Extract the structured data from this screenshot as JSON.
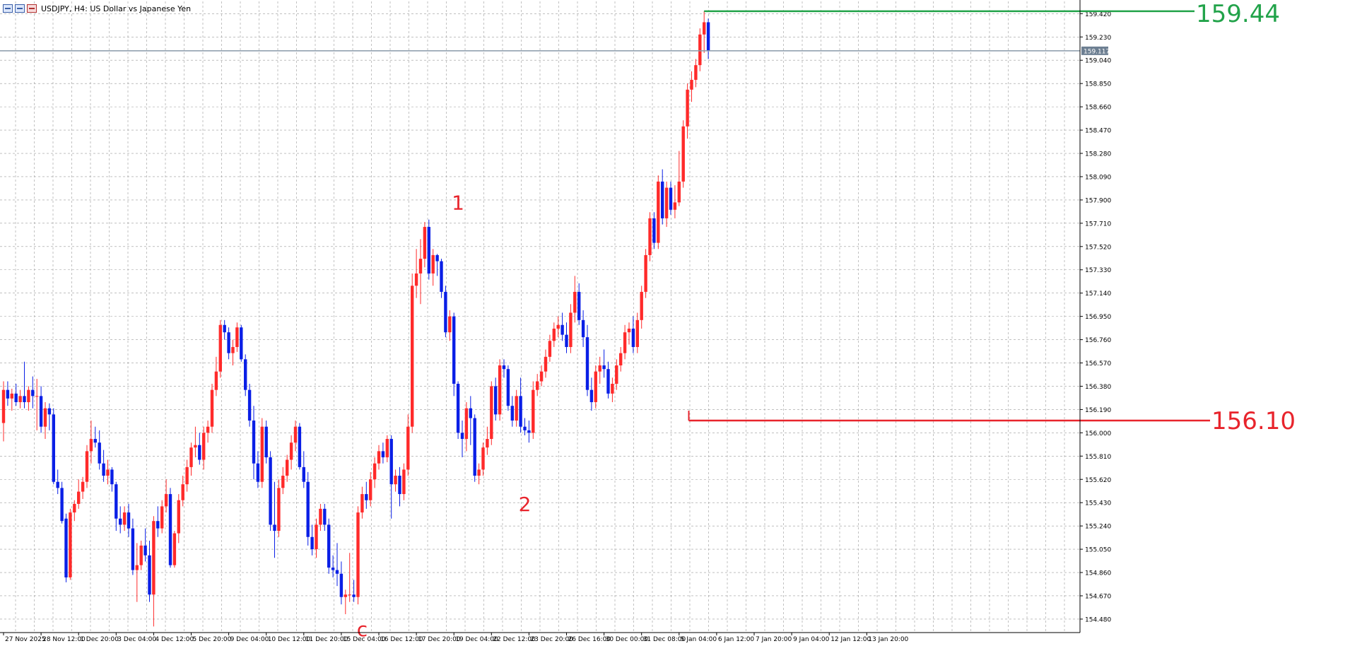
{
  "window": {
    "title": "USDJPY, H4:  US Dollar vs Japanese Yen",
    "icon_names": [
      "chart-window-icon",
      "maximize-window-icon",
      "close-window-icon"
    ]
  },
  "colors": {
    "bull": "#ff2a2a",
    "bear": "#0a1fe6",
    "grid": "#9a9a9a",
    "resistance": "#22a34a",
    "support": "#e8242c",
    "wave_label": "#e8242c",
    "current_price_line": "#8a9aaa",
    "current_price_badge": "#6d7f92"
  },
  "chart_data": {
    "type": "candlestick",
    "symbol": "USDJPY",
    "timeframe": "H4",
    "ylim": [
      154.37,
      159.52
    ],
    "y_ticks": [
      159.42,
      159.23,
      159.04,
      158.85,
      158.66,
      158.47,
      158.28,
      158.09,
      157.9,
      157.71,
      157.52,
      157.33,
      157.14,
      156.95,
      156.76,
      156.57,
      156.38,
      156.19,
      156.0,
      155.81,
      155.62,
      155.43,
      155.24,
      155.05,
      154.86,
      154.67,
      154.48
    ],
    "y_tick_labels": [
      "159.420",
      "159.230",
      "159.040",
      "158.850",
      "158.660",
      "158.470",
      "158.280",
      "158.090",
      "157.900",
      "157.710",
      "157.520",
      "157.330",
      "157.140",
      "156.950",
      "156.760",
      "156.570",
      "156.380",
      "156.190",
      "156.000",
      "155.810",
      "155.620",
      "155.430",
      "155.240",
      "155.050",
      "154.860",
      "154.670",
      "154.480"
    ],
    "x_ticks": [
      {
        "label": "27 Nov 2025",
        "bar": 0
      },
      {
        "label": "28 Nov 12:00",
        "bar": 9
      },
      {
        "label": "1 Dec 20:00",
        "bar": 18
      },
      {
        "label": "3 Dec 04:00",
        "bar": 27
      },
      {
        "label": "4 Dec 12:00",
        "bar": 36
      },
      {
        "label": "5 Dec 20:00",
        "bar": 45
      },
      {
        "label": "9 Dec 04:00",
        "bar": 54
      },
      {
        "label": "10 Dec 12:00",
        "bar": 63
      },
      {
        "label": "11 Dec 20:00",
        "bar": 72
      },
      {
        "label": "15 Dec 04:00",
        "bar": 81
      },
      {
        "label": "16 Dec 12:00",
        "bar": 90
      },
      {
        "label": "17 Dec 20:00",
        "bar": 99
      },
      {
        "label": "19 Dec 04:00",
        "bar": 108
      },
      {
        "label": "22 Dec 12:00",
        "bar": 117
      },
      {
        "label": "23 Dec 20:00",
        "bar": 126
      },
      {
        "label": "26 Dec 16:00",
        "bar": 135
      },
      {
        "label": "30 Dec 00:00",
        "bar": 144
      },
      {
        "label": "31 Dec 08:00",
        "bar": 153
      },
      {
        "label": "5 Jan 04:00",
        "bar": 162
      },
      {
        "label": "6 Jan 12:00",
        "bar": 171
      },
      {
        "label": "7 Jan 20:00",
        "bar": 180
      },
      {
        "label": "9 Jan 04:00",
        "bar": 189
      },
      {
        "label": "12 Jan 12:00",
        "bar": 198
      },
      {
        "label": "13 Jan 20:00",
        "bar": 207
      }
    ],
    "ohlc": [
      [
        156.08,
        156.42,
        155.93,
        156.35
      ],
      [
        156.35,
        156.42,
        156.22,
        156.28
      ],
      [
        156.28,
        156.36,
        156.18,
        156.32
      ],
      [
        156.32,
        156.4,
        156.22,
        156.25
      ],
      [
        156.25,
        156.35,
        156.2,
        156.3
      ],
      [
        156.3,
        156.58,
        156.2,
        156.25
      ],
      [
        156.25,
        156.38,
        156.18,
        156.35
      ],
      [
        156.35,
        156.46,
        156.2,
        156.3
      ],
      [
        156.3,
        156.44,
        156.02,
        156.3
      ],
      [
        156.3,
        156.38,
        156.0,
        156.05
      ],
      [
        156.05,
        156.25,
        155.95,
        156.2
      ],
      [
        156.2,
        156.24,
        156.02,
        156.15
      ],
      [
        156.15,
        156.2,
        155.58,
        155.6
      ],
      [
        155.6,
        155.7,
        155.5,
        155.55
      ],
      [
        155.55,
        155.6,
        155.26,
        155.28
      ],
      [
        155.3,
        155.34,
        154.78,
        154.82
      ],
      [
        154.82,
        155.38,
        154.8,
        155.35
      ],
      [
        155.35,
        155.45,
        155.28,
        155.42
      ],
      [
        155.42,
        155.62,
        155.38,
        155.52
      ],
      [
        155.52,
        155.64,
        155.46,
        155.6
      ],
      [
        155.6,
        155.9,
        155.55,
        155.85
      ],
      [
        155.85,
        156.1,
        155.75,
        155.95
      ],
      [
        155.95,
        156.05,
        155.88,
        155.92
      ],
      [
        155.92,
        156.02,
        155.7,
        155.75
      ],
      [
        155.75,
        155.86,
        155.6,
        155.65
      ],
      [
        155.65,
        155.78,
        155.58,
        155.7
      ],
      [
        155.7,
        155.72,
        155.52,
        155.58
      ],
      [
        155.58,
        155.6,
        155.2,
        155.3
      ],
      [
        155.3,
        155.4,
        155.18,
        155.25
      ],
      [
        155.25,
        155.4,
        155.2,
        155.35
      ],
      [
        155.35,
        155.42,
        155.15,
        155.22
      ],
      [
        155.22,
        155.3,
        154.84,
        154.88
      ],
      [
        154.88,
        155.1,
        154.62,
        154.92
      ],
      [
        154.92,
        155.12,
        154.88,
        155.08
      ],
      [
        155.08,
        155.22,
        154.95,
        155.0
      ],
      [
        155.0,
        155.12,
        154.62,
        154.68
      ],
      [
        154.68,
        155.32,
        154.42,
        155.28
      ],
      [
        155.28,
        155.4,
        155.15,
        155.22
      ],
      [
        155.22,
        155.45,
        155.18,
        155.4
      ],
      [
        155.4,
        155.62,
        155.35,
        155.5
      ],
      [
        155.5,
        155.55,
        154.9,
        154.92
      ],
      [
        154.92,
        155.2,
        154.9,
        155.18
      ],
      [
        155.18,
        155.5,
        155.1,
        155.45
      ],
      [
        155.45,
        155.65,
        155.4,
        155.58
      ],
      [
        155.58,
        155.78,
        155.52,
        155.72
      ],
      [
        155.72,
        155.92,
        155.65,
        155.88
      ],
      [
        155.88,
        156.05,
        155.8,
        155.9
      ],
      [
        155.9,
        156.0,
        155.74,
        155.78
      ],
      [
        155.78,
        156.05,
        155.7,
        156.0
      ],
      [
        156.0,
        156.1,
        155.92,
        156.05
      ],
      [
        156.05,
        156.4,
        156.0,
        156.35
      ],
      [
        156.35,
        156.62,
        156.3,
        156.5
      ],
      [
        156.5,
        156.92,
        156.45,
        156.88
      ],
      [
        156.88,
        156.92,
        156.76,
        156.82
      ],
      [
        156.82,
        156.86,
        156.6,
        156.65
      ],
      [
        156.65,
        156.76,
        156.55,
        156.7
      ],
      [
        156.7,
        156.9,
        156.66,
        156.86
      ],
      [
        156.86,
        156.88,
        156.58,
        156.6
      ],
      [
        156.6,
        156.64,
        156.3,
        156.35
      ],
      [
        156.35,
        156.4,
        156.05,
        156.1
      ],
      [
        156.1,
        156.22,
        155.62,
        155.75
      ],
      [
        155.75,
        155.85,
        155.55,
        155.6
      ],
      [
        155.6,
        156.12,
        155.55,
        156.05
      ],
      [
        156.05,
        156.1,
        155.75,
        155.8
      ],
      [
        155.8,
        155.85,
        155.2,
        155.25
      ],
      [
        155.25,
        155.6,
        154.98,
        155.2
      ],
      [
        155.2,
        155.62,
        155.15,
        155.55
      ],
      [
        155.55,
        155.72,
        155.5,
        155.65
      ],
      [
        155.65,
        155.82,
        155.6,
        155.78
      ],
      [
        155.78,
        155.98,
        155.7,
        155.92
      ],
      [
        155.92,
        156.1,
        155.85,
        156.05
      ],
      [
        156.05,
        156.08,
        155.7,
        155.72
      ],
      [
        155.72,
        155.85,
        155.55,
        155.6
      ],
      [
        155.6,
        155.68,
        155.08,
        155.15
      ],
      [
        155.15,
        155.25,
        155.0,
        155.05
      ],
      [
        155.05,
        155.3,
        154.98,
        155.25
      ],
      [
        155.25,
        155.42,
        155.2,
        155.38
      ],
      [
        155.38,
        155.42,
        155.2,
        155.25
      ],
      [
        155.25,
        155.3,
        154.85,
        154.9
      ],
      [
        154.9,
        155.0,
        154.82,
        154.88
      ],
      [
        154.88,
        155.1,
        154.75,
        154.85
      ],
      [
        154.85,
        154.95,
        154.6,
        154.66
      ],
      [
        154.66,
        154.72,
        154.52,
        154.68
      ],
      [
        154.68,
        155.02,
        154.62,
        154.68
      ],
      [
        154.68,
        154.8,
        154.62,
        154.66
      ],
      [
        154.66,
        155.4,
        154.6,
        155.35
      ],
      [
        155.35,
        155.56,
        155.3,
        155.5
      ],
      [
        155.5,
        155.6,
        155.38,
        155.45
      ],
      [
        155.45,
        155.68,
        155.4,
        155.62
      ],
      [
        155.62,
        155.8,
        155.55,
        155.75
      ],
      [
        155.75,
        155.9,
        155.7,
        155.85
      ],
      [
        155.85,
        155.92,
        155.75,
        155.8
      ],
      [
        155.8,
        155.98,
        155.76,
        155.95
      ],
      [
        155.95,
        155.98,
        155.3,
        155.58
      ],
      [
        155.58,
        155.7,
        155.52,
        155.65
      ],
      [
        155.65,
        155.72,
        155.4,
        155.5
      ],
      [
        155.5,
        155.75,
        155.45,
        155.7
      ],
      [
        155.7,
        156.15,
        155.65,
        156.05
      ],
      [
        156.05,
        157.3,
        156.0,
        157.2
      ],
      [
        157.2,
        157.5,
        157.1,
        157.3
      ],
      [
        157.3,
        157.58,
        157.05,
        157.42
      ],
      [
        157.42,
        157.72,
        157.35,
        157.68
      ],
      [
        157.68,
        157.74,
        157.25,
        157.3
      ],
      [
        157.3,
        157.5,
        157.2,
        157.45
      ],
      [
        157.45,
        157.46,
        157.28,
        157.4
      ],
      [
        157.4,
        157.42,
        157.1,
        157.15
      ],
      [
        157.15,
        157.2,
        156.78,
        156.82
      ],
      [
        156.82,
        157.0,
        156.75,
        156.95
      ],
      [
        156.95,
        156.98,
        156.3,
        156.4
      ],
      [
        156.4,
        156.42,
        155.95,
        156.0
      ],
      [
        156.0,
        156.1,
        155.8,
        155.95
      ],
      [
        155.95,
        156.25,
        155.85,
        156.2
      ],
      [
        156.2,
        156.3,
        155.9,
        156.12
      ],
      [
        156.12,
        156.15,
        155.6,
        155.65
      ],
      [
        155.65,
        155.75,
        155.58,
        155.7
      ],
      [
        155.7,
        155.92,
        155.65,
        155.88
      ],
      [
        155.88,
        156.05,
        155.82,
        155.95
      ],
      [
        155.95,
        156.42,
        155.9,
        156.38
      ],
      [
        156.38,
        156.45,
        156.1,
        156.15
      ],
      [
        156.15,
        156.6,
        156.1,
        156.55
      ],
      [
        156.55,
        156.6,
        156.45,
        156.52
      ],
      [
        156.52,
        156.55,
        156.18,
        156.22
      ],
      [
        156.22,
        156.3,
        156.05,
        156.1
      ],
      [
        156.1,
        156.35,
        156.05,
        156.3
      ],
      [
        156.3,
        156.45,
        156.0,
        156.05
      ],
      [
        156.05,
        156.12,
        155.98,
        156.02
      ],
      [
        156.02,
        156.1,
        155.92,
        156.0
      ],
      [
        156.0,
        156.42,
        155.95,
        156.35
      ],
      [
        156.35,
        156.48,
        156.3,
        156.42
      ],
      [
        156.42,
        156.55,
        156.38,
        156.5
      ],
      [
        156.5,
        156.68,
        156.45,
        156.62
      ],
      [
        156.62,
        156.8,
        156.58,
        156.75
      ],
      [
        156.75,
        156.9,
        156.7,
        156.85
      ],
      [
        156.85,
        156.95,
        156.78,
        156.88
      ],
      [
        156.88,
        156.98,
        156.75,
        156.8
      ],
      [
        156.8,
        156.9,
        156.65,
        156.7
      ],
      [
        156.7,
        157.05,
        156.65,
        156.98
      ],
      [
        156.98,
        157.28,
        156.9,
        157.15
      ],
      [
        157.15,
        157.22,
        156.88,
        156.92
      ],
      [
        156.92,
        157.0,
        156.7,
        156.78
      ],
      [
        156.78,
        156.88,
        156.3,
        156.35
      ],
      [
        156.35,
        156.45,
        156.18,
        156.25
      ],
      [
        156.25,
        156.55,
        156.2,
        156.5
      ],
      [
        156.5,
        156.62,
        156.4,
        156.55
      ],
      [
        156.55,
        156.68,
        156.45,
        156.52
      ],
      [
        156.52,
        156.58,
        156.28,
        156.32
      ],
      [
        156.32,
        156.45,
        156.25,
        156.4
      ],
      [
        156.4,
        156.6,
        156.35,
        156.55
      ],
      [
        156.55,
        156.7,
        156.5,
        156.65
      ],
      [
        156.65,
        156.88,
        156.6,
        156.82
      ],
      [
        156.82,
        156.9,
        156.72,
        156.85
      ],
      [
        156.85,
        156.95,
        156.65,
        156.7
      ],
      [
        156.7,
        156.98,
        156.65,
        156.92
      ],
      [
        156.92,
        157.2,
        156.85,
        157.15
      ],
      [
        157.15,
        157.5,
        157.1,
        157.45
      ],
      [
        157.45,
        157.8,
        157.4,
        157.75
      ],
      [
        157.75,
        157.8,
        157.5,
        157.55
      ],
      [
        157.55,
        158.1,
        157.5,
        158.05
      ],
      [
        158.05,
        158.15,
        157.7,
        157.75
      ],
      [
        157.75,
        158.05,
        157.68,
        158.0
      ],
      [
        158.0,
        158.05,
        157.78,
        157.82
      ],
      [
        157.82,
        158.02,
        157.75,
        157.88
      ],
      [
        157.88,
        158.3,
        157.85,
        158.05
      ],
      [
        158.05,
        158.55,
        158.0,
        158.5
      ],
      [
        158.5,
        158.85,
        158.4,
        158.8
      ],
      [
        158.8,
        158.95,
        158.7,
        158.88
      ],
      [
        158.88,
        159.05,
        158.82,
        159.0
      ],
      [
        159.0,
        159.3,
        158.95,
        159.25
      ],
      [
        159.25,
        159.44,
        159.1,
        159.35
      ],
      [
        159.35,
        159.38,
        159.05,
        159.12
      ]
    ],
    "current_price": 159.117,
    "current_price_label": "159.117",
    "resistance": {
      "value": 159.44,
      "label": "159.44"
    },
    "support": {
      "value": 156.1,
      "label": "156.10"
    },
    "wave_labels": [
      {
        "text": "1",
        "bar": 109,
        "price": 157.88
      },
      {
        "text": "2",
        "bar": 125,
        "price": 155.42
      },
      {
        "text": "c",
        "bar": 86,
        "price": 154.4
      }
    ]
  }
}
